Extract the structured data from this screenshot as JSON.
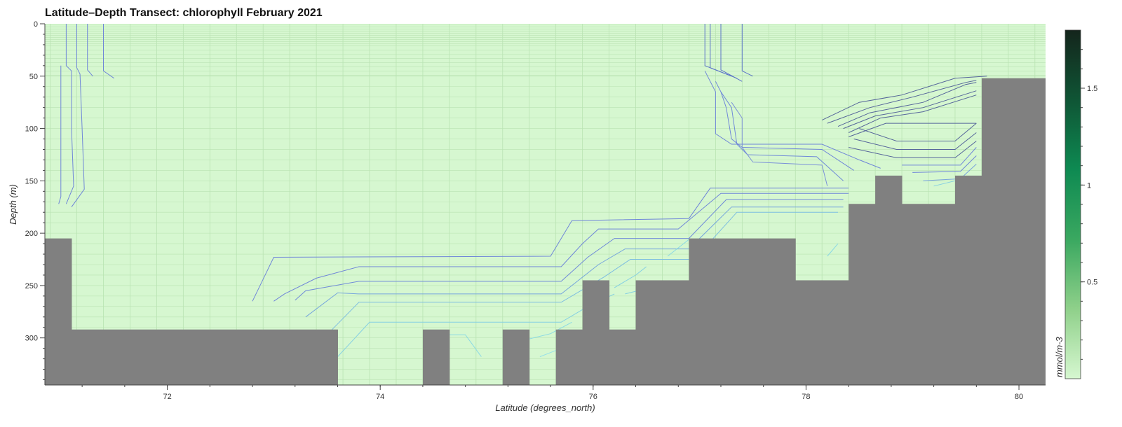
{
  "chart_data": {
    "type": "heatmap",
    "title": "Latitude–Depth Transect: chlorophyll February 2021",
    "xlabel": "Latitude (degrees_north)",
    "ylabel": "Depth (m)",
    "xlim": [
      70.85,
      80.25
    ],
    "ylim": [
      345,
      0
    ],
    "x_ticks": [
      72,
      74,
      76,
      78,
      80
    ],
    "y_ticks": [
      0,
      50,
      100,
      150,
      200,
      250,
      300
    ],
    "background_value_range": "~0.1 (light green)",
    "colorbar": {
      "label": "mmol/m-3",
      "range": [
        0,
        1.8
      ],
      "ticks": [
        0.5,
        1,
        1.5
      ],
      "colors": [
        "#d6f7d0",
        "#8fd08a",
        "#3aa860",
        "#0e8a52",
        "#0f5535",
        "#14251c"
      ]
    },
    "land_color": "#808080",
    "seafloor": [
      {
        "x0": 70.85,
        "x1": 71.1,
        "depth": 205
      },
      {
        "x0": 71.1,
        "x1": 73.6,
        "depth": 292
      },
      {
        "x0": 73.6,
        "x1": 74.4,
        "depth": 345
      },
      {
        "x0": 74.4,
        "x1": 74.65,
        "depth": 292
      },
      {
        "x0": 74.65,
        "x1": 75.15,
        "depth": 345
      },
      {
        "x0": 75.15,
        "x1": 75.4,
        "depth": 292
      },
      {
        "x0": 75.4,
        "x1": 75.65,
        "depth": 345
      },
      {
        "x0": 75.65,
        "x1": 75.9,
        "depth": 292
      },
      {
        "x0": 75.9,
        "x1": 76.15,
        "depth": 245
      },
      {
        "x0": 76.15,
        "x1": 76.4,
        "depth": 292
      },
      {
        "x0": 76.4,
        "x1": 76.9,
        "depth": 245
      },
      {
        "x0": 76.9,
        "x1": 77.9,
        "depth": 205
      },
      {
        "x0": 77.9,
        "x1": 78.4,
        "depth": 245
      },
      {
        "x0": 78.4,
        "x1": 78.65,
        "depth": 172
      },
      {
        "x0": 78.65,
        "x1": 78.9,
        "depth": 145
      },
      {
        "x0": 78.9,
        "x1": 79.4,
        "depth": 172
      },
      {
        "x0": 79.4,
        "x1": 79.65,
        "depth": 145
      },
      {
        "x0": 79.65,
        "x1": 80.25,
        "depth": 52
      }
    ],
    "contours": [
      {
        "color": "#6f86d8",
        "points": [
          [
            71.0,
            40
          ],
          [
            71.0,
            165
          ],
          [
            70.98,
            172
          ]
        ]
      },
      {
        "color": "#6f86d8",
        "points": [
          [
            71.05,
            0
          ],
          [
            71.05,
            40
          ],
          [
            71.1,
            45
          ],
          [
            71.1,
            100
          ],
          [
            71.12,
            155
          ],
          [
            71.05,
            172
          ]
        ]
      },
      {
        "color": "#6f86d8",
        "points": [
          [
            71.15,
            0
          ],
          [
            71.15,
            42
          ],
          [
            71.18,
            48
          ],
          [
            71.2,
            100
          ],
          [
            71.22,
            158
          ],
          [
            71.1,
            175
          ]
        ]
      },
      {
        "color": "#6f86d8",
        "points": [
          [
            71.25,
            0
          ],
          [
            71.25,
            44
          ],
          [
            71.3,
            50
          ]
        ]
      },
      {
        "color": "#6f86d8",
        "points": [
          [
            71.4,
            0
          ],
          [
            71.4,
            45
          ],
          [
            71.5,
            52
          ]
        ]
      },
      {
        "color": "#5b73c8",
        "points": [
          [
            77.05,
            0
          ],
          [
            77.05,
            40
          ],
          [
            77.3,
            50
          ]
        ]
      },
      {
        "color": "#5b73c8",
        "points": [
          [
            77.1,
            0
          ],
          [
            77.1,
            42
          ],
          [
            77.35,
            52
          ]
        ]
      },
      {
        "color": "#5b73c8",
        "points": [
          [
            77.2,
            0
          ],
          [
            77.2,
            44
          ],
          [
            77.4,
            55
          ]
        ]
      },
      {
        "color": "#5b73c8",
        "points": [
          [
            77.4,
            0
          ],
          [
            77.4,
            45
          ],
          [
            77.5,
            50
          ]
        ]
      },
      {
        "color": "#6f86d8",
        "points": [
          [
            72.8,
            265
          ],
          [
            73.0,
            223
          ],
          [
            75.6,
            222
          ],
          [
            75.8,
            188
          ],
          [
            76.9,
            186
          ],
          [
            77.1,
            157
          ],
          [
            78.4,
            157
          ]
        ]
      },
      {
        "color": "#6f86d8",
        "points": [
          [
            73.0,
            265
          ],
          [
            73.1,
            258
          ],
          [
            73.4,
            243
          ],
          [
            73.8,
            232
          ],
          [
            75.7,
            232
          ],
          [
            75.9,
            210
          ],
          [
            76.05,
            196
          ],
          [
            76.8,
            196
          ],
          [
            77.2,
            162
          ],
          [
            78.4,
            162
          ]
        ]
      },
      {
        "color": "#6f8ad8",
        "points": [
          [
            73.2,
            264
          ],
          [
            73.3,
            255
          ],
          [
            73.8,
            246
          ],
          [
            75.7,
            246
          ],
          [
            75.95,
            223
          ],
          [
            76.2,
            205
          ],
          [
            76.9,
            205
          ],
          [
            77.25,
            168
          ],
          [
            78.35,
            168
          ]
        ]
      },
      {
        "color": "#76a6dc",
        "points": [
          [
            73.3,
            280
          ],
          [
            73.6,
            257
          ],
          [
            73.8,
            258
          ],
          [
            75.7,
            258
          ],
          [
            76.05,
            230
          ],
          [
            76.3,
            215
          ],
          [
            76.9,
            215
          ],
          [
            77.3,
            175
          ],
          [
            78.35,
            175
          ]
        ]
      },
      {
        "color": "#7cbde0",
        "points": [
          [
            73.5,
            297
          ],
          [
            73.8,
            266
          ],
          [
            75.7,
            266
          ],
          [
            76.1,
            242
          ],
          [
            76.35,
            225
          ],
          [
            76.95,
            225
          ],
          [
            77.35,
            180
          ],
          [
            78.3,
            180
          ]
        ]
      },
      {
        "color": "#84cfe2",
        "points": [
          [
            73.6,
            318
          ],
          [
            73.9,
            285
          ],
          [
            75.7,
            285
          ],
          [
            75.95,
            270
          ],
          [
            76.2,
            258
          ]
        ]
      },
      {
        "color": "#8ad9e4",
        "points": [
          [
            74.6,
            297
          ],
          [
            74.8,
            297
          ],
          [
            74.95,
            318
          ]
        ]
      },
      {
        "color": "#8ad9e4",
        "points": [
          [
            75.4,
            301
          ],
          [
            75.6,
            296
          ],
          [
            75.8,
            285
          ]
        ]
      },
      {
        "color": "#96e0e8",
        "points": [
          [
            75.5,
            318
          ],
          [
            75.8,
            306
          ]
        ]
      },
      {
        "color": "#84cfe2",
        "points": [
          [
            76.2,
            252
          ],
          [
            76.4,
            240
          ],
          [
            76.5,
            232
          ]
        ]
      },
      {
        "color": "#84cfe2",
        "points": [
          [
            76.3,
            258
          ],
          [
            76.5,
            253
          ]
        ]
      },
      {
        "color": "#8ad9e4",
        "points": [
          [
            76.7,
            222
          ],
          [
            76.9,
            206
          ]
        ]
      },
      {
        "color": "#8ad9e4",
        "points": [
          [
            78.2,
            222
          ],
          [
            78.3,
            210
          ]
        ]
      },
      {
        "color": "#6f86d8",
        "points": [
          [
            77.05,
            45
          ],
          [
            77.1,
            55
          ],
          [
            77.15,
            65
          ],
          [
            77.15,
            105
          ],
          [
            77.3,
            115
          ],
          [
            78.15,
            115
          ],
          [
            78.5,
            130
          ],
          [
            78.7,
            138
          ]
        ]
      },
      {
        "color": "#6f86d8",
        "points": [
          [
            77.15,
            55
          ],
          [
            77.2,
            65
          ],
          [
            77.25,
            80
          ],
          [
            77.3,
            110
          ],
          [
            77.4,
            118
          ],
          [
            78.15,
            120
          ],
          [
            78.45,
            140
          ]
        ]
      },
      {
        "color": "#6f8ad8",
        "points": [
          [
            77.2,
            65
          ],
          [
            77.3,
            80
          ],
          [
            77.35,
            115
          ],
          [
            77.45,
            125
          ],
          [
            78.1,
            127
          ],
          [
            78.35,
            150
          ]
        ]
      },
      {
        "color": "#7a90d8",
        "points": [
          [
            77.3,
            75
          ],
          [
            77.4,
            90
          ],
          [
            77.4,
            118
          ],
          [
            77.5,
            132
          ],
          [
            78.15,
            135
          ],
          [
            78.2,
            155
          ]
        ]
      },
      {
        "color": "#55659a",
        "points": [
          [
            78.15,
            92
          ],
          [
            78.5,
            75
          ],
          [
            78.9,
            68
          ],
          [
            79.4,
            52
          ],
          [
            79.7,
            50
          ]
        ]
      },
      {
        "color": "#55659a",
        "points": [
          [
            78.2,
            95
          ],
          [
            78.6,
            80
          ],
          [
            79.0,
            70
          ],
          [
            79.5,
            56
          ],
          [
            79.6,
            54
          ]
        ]
      },
      {
        "color": "#55659a",
        "points": [
          [
            78.3,
            98
          ],
          [
            78.6,
            85
          ],
          [
            79.1,
            75
          ],
          [
            79.5,
            58
          ],
          [
            79.6,
            56
          ]
        ]
      },
      {
        "color": "#55659a",
        "points": [
          [
            78.35,
            100
          ],
          [
            78.65,
            88
          ],
          [
            79.1,
            80
          ],
          [
            79.6,
            64
          ]
        ]
      },
      {
        "color": "#55659a",
        "points": [
          [
            78.4,
            104
          ],
          [
            78.7,
            90
          ],
          [
            79.1,
            84
          ],
          [
            79.6,
            68
          ]
        ]
      },
      {
        "color": "#55659a",
        "points": [
          [
            78.4,
            108
          ],
          [
            78.75,
            95
          ],
          [
            79.6,
            95
          ]
        ]
      },
      {
        "color": "#55659a",
        "points": [
          [
            78.5,
            100
          ],
          [
            78.85,
            112
          ],
          [
            79.4,
            112
          ],
          [
            79.6,
            95
          ]
        ]
      },
      {
        "color": "#55659a",
        "points": [
          [
            78.45,
            110
          ],
          [
            78.85,
            120
          ],
          [
            79.4,
            120
          ],
          [
            79.6,
            104
          ]
        ]
      },
      {
        "color": "#55659a",
        "points": [
          [
            78.4,
            118
          ],
          [
            78.85,
            128
          ],
          [
            79.4,
            128
          ],
          [
            79.6,
            112
          ]
        ]
      },
      {
        "color": "#6f86d8",
        "points": [
          [
            78.9,
            135
          ],
          [
            79.45,
            135
          ],
          [
            79.6,
            118
          ]
        ]
      },
      {
        "color": "#6f86d8",
        "points": [
          [
            79.0,
            142
          ],
          [
            79.45,
            141
          ],
          [
            79.6,
            126
          ]
        ]
      },
      {
        "color": "#7aa4dc",
        "points": [
          [
            79.1,
            150
          ],
          [
            79.45,
            148
          ],
          [
            79.6,
            134
          ]
        ]
      },
      {
        "color": "#84cfe2",
        "points": [
          [
            79.2,
            155
          ],
          [
            79.4,
            150
          ]
        ]
      }
    ]
  }
}
